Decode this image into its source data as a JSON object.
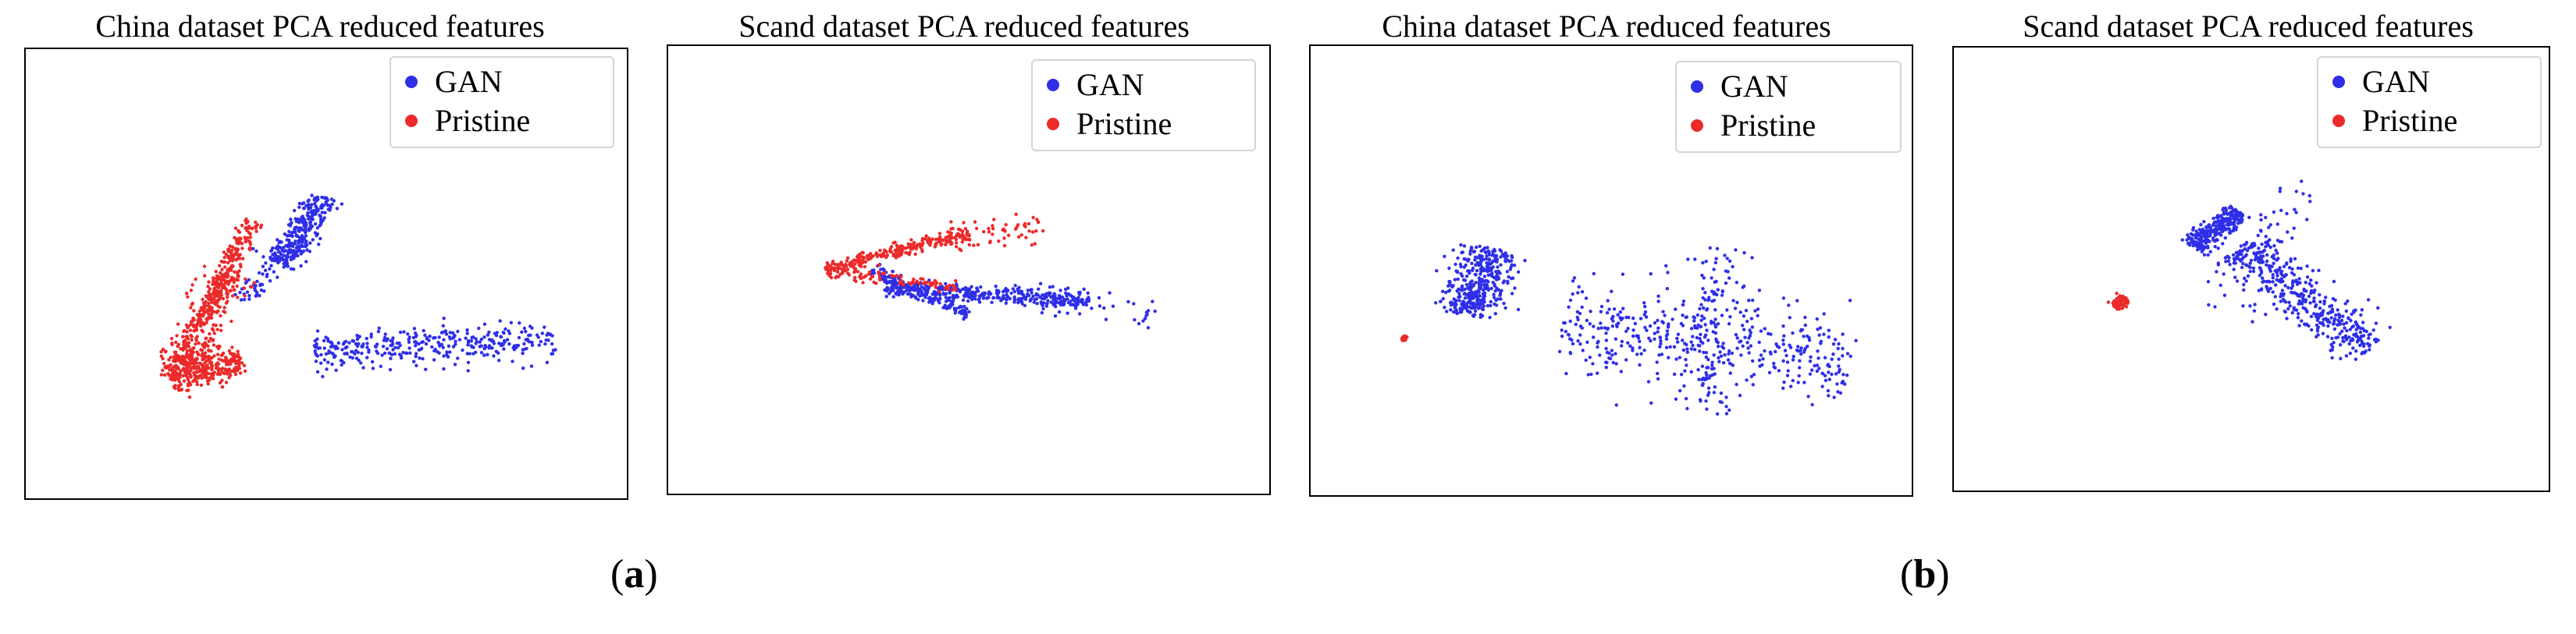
{
  "colors": {
    "gan": "#2f2fe8",
    "pristine": "#ec2a2a",
    "frame": "#000000"
  },
  "subfigure_labels": [
    {
      "open": "(",
      "letter": "a",
      "close": ")"
    },
    {
      "open": "(",
      "letter": "b",
      "close": ")"
    }
  ],
  "chart_data": [
    {
      "type": "scatter",
      "title": "China dataset PCA reduced features",
      "xlabel": "",
      "ylabel": "",
      "grid": false,
      "legend_position": "top-right",
      "series": [
        {
          "name": "GAN",
          "color": "#2f2fe8",
          "clusters": [
            {
              "x0": 0.42,
              "y0": 0.52,
              "x1": 0.5,
              "y1": 0.67,
              "width": 0.03,
              "count": 280,
              "seed": 11
            },
            {
              "x0": 0.48,
              "y0": 0.33,
              "x1": 0.88,
              "y1": 0.35,
              "width": 0.045,
              "count": 340,
              "seed": 12
            },
            {
              "x0": 0.36,
              "y0": 0.44,
              "x1": 0.44,
              "y1": 0.56,
              "width": 0.02,
              "count": 60,
              "seed": 13
            }
          ]
        },
        {
          "name": "Pristine",
          "color": "#ec2a2a",
          "clusters": [
            {
              "x0": 0.24,
              "y0": 0.27,
              "x1": 0.38,
              "y1": 0.62,
              "width": 0.02,
              "count": 340,
              "seed": 21
            },
            {
              "x0": 0.24,
              "y0": 0.27,
              "x1": 0.36,
              "y1": 0.31,
              "width": 0.035,
              "count": 300,
              "seed": 22
            },
            {
              "x0": 0.26,
              "y0": 0.3,
              "x1": 0.34,
              "y1": 0.5,
              "width": 0.04,
              "count": 160,
              "seed": 23
            }
          ]
        }
      ]
    },
    {
      "type": "scatter",
      "title": "Scand dataset PCA reduced features",
      "xlabel": "",
      "ylabel": "",
      "grid": false,
      "legend_position": "top-right",
      "series": [
        {
          "name": "GAN",
          "color": "#2f2fe8",
          "clusters": [
            {
              "x0": 0.34,
              "y0": 0.5,
              "x1": 0.5,
              "y1": 0.4,
              "width": 0.014,
              "count": 150,
              "seed": 31
            },
            {
              "x0": 0.36,
              "y0": 0.46,
              "x1": 0.7,
              "y1": 0.43,
              "width": 0.02,
              "count": 380,
              "seed": 32
            },
            {
              "x0": 0.6,
              "y0": 0.44,
              "x1": 0.82,
              "y1": 0.4,
              "width": 0.035,
              "count": 40,
              "seed": 33
            }
          ]
        },
        {
          "name": "Pristine",
          "color": "#ec2a2a",
          "clusters": [
            {
              "x0": 0.26,
              "y0": 0.5,
              "x1": 0.5,
              "y1": 0.58,
              "width": 0.016,
              "count": 240,
              "seed": 41
            },
            {
              "x0": 0.26,
              "y0": 0.5,
              "x1": 0.48,
              "y1": 0.46,
              "width": 0.016,
              "count": 90,
              "seed": 42
            },
            {
              "x0": 0.46,
              "y0": 0.56,
              "x1": 0.62,
              "y1": 0.6,
              "width": 0.04,
              "count": 60,
              "seed": 43
            }
          ]
        }
      ]
    },
    {
      "type": "scatter",
      "title": "China dataset PCA reduced features",
      "xlabel": "",
      "ylabel": "",
      "grid": false,
      "legend_position": "top-right",
      "series": [
        {
          "name": "GAN",
          "color": "#2f2fe8",
          "clusters": [
            {
              "x0": 0.26,
              "y0": 0.4,
              "x1": 0.3,
              "y1": 0.55,
              "width": 0.05,
              "count": 380,
              "seed": 51
            },
            {
              "x0": 0.42,
              "y0": 0.38,
              "x1": 0.9,
              "y1": 0.3,
              "width": 0.1,
              "count": 420,
              "seed": 52
            },
            {
              "x0": 0.66,
              "y0": 0.18,
              "x1": 0.68,
              "y1": 0.55,
              "width": 0.05,
              "count": 120,
              "seed": 53
            }
          ]
        },
        {
          "name": "Pristine",
          "color": "#ec2a2a",
          "clusters": [
            {
              "x0": 0.155,
              "y0": 0.345,
              "x1": 0.157,
              "y1": 0.355,
              "width": 0.004,
              "count": 50,
              "seed": 61
            }
          ]
        }
      ]
    },
    {
      "type": "scatter",
      "title": "Scand dataset PCA reduced features",
      "xlabel": "",
      "ylabel": "",
      "grid": false,
      "legend_position": "top-right",
      "series": [
        {
          "name": "GAN",
          "color": "#2f2fe8",
          "clusters": [
            {
              "x0": 0.4,
              "y0": 0.55,
              "x1": 0.48,
              "y1": 0.63,
              "width": 0.025,
              "count": 260,
              "seed": 71
            },
            {
              "x0": 0.48,
              "y0": 0.55,
              "x1": 0.7,
              "y1": 0.32,
              "width": 0.05,
              "count": 420,
              "seed": 72
            },
            {
              "x0": 0.44,
              "y0": 0.4,
              "x1": 0.58,
              "y1": 0.7,
              "width": 0.06,
              "count": 60,
              "seed": 73
            }
          ]
        },
        {
          "name": "Pristine",
          "color": "#ec2a2a",
          "clusters": [
            {
              "x0": 0.27,
              "y0": 0.415,
              "x1": 0.29,
              "y1": 0.435,
              "width": 0.012,
              "count": 70,
              "seed": 81
            }
          ]
        }
      ]
    }
  ]
}
